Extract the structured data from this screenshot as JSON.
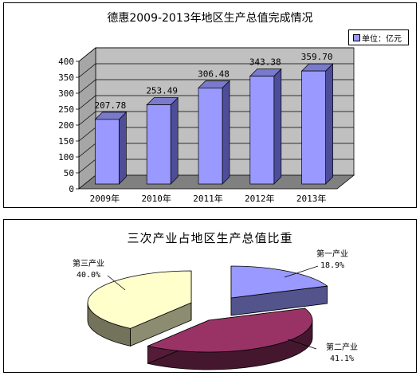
{
  "chart_data": [
    {
      "type": "bar",
      "title": "德惠2009-2013年地区生产总值完成情况",
      "categories": [
        "2009年",
        "2010年",
        "2011年",
        "2012年",
        "2013年"
      ],
      "values": [
        207.78,
        253.49,
        306.48,
        343.38,
        359.7
      ],
      "value_labels": [
        "207.78",
        "253.49",
        "306.48",
        "343.38",
        "359.70"
      ],
      "yticks": [
        "0",
        "50",
        "100",
        "150",
        "200",
        "250",
        "300",
        "350",
        "400"
      ],
      "ylim": [
        0,
        400
      ],
      "legend": {
        "label": "单位：亿元",
        "placement": "top-right"
      },
      "grid": true,
      "colors": {
        "bar_front": "#9999ff",
        "bar_side": "#4d4d99",
        "bar_top": "#7a7acc",
        "wall": "#c0c0c0",
        "floor": "#808080"
      }
    },
    {
      "type": "pie",
      "title": "三次产业占地区生产总值比重",
      "slices": [
        {
          "label": "第一产业",
          "value": 18.9,
          "pct_label": "18.9%",
          "color": "#9999ff"
        },
        {
          "label": "第二产业",
          "value": 41.1,
          "pct_label": "41.1%",
          "color": "#993366"
        },
        {
          "label": "第三产业",
          "value": 40.0,
          "pct_label": "40.0%",
          "color": "#ffffcc"
        }
      ]
    }
  ]
}
